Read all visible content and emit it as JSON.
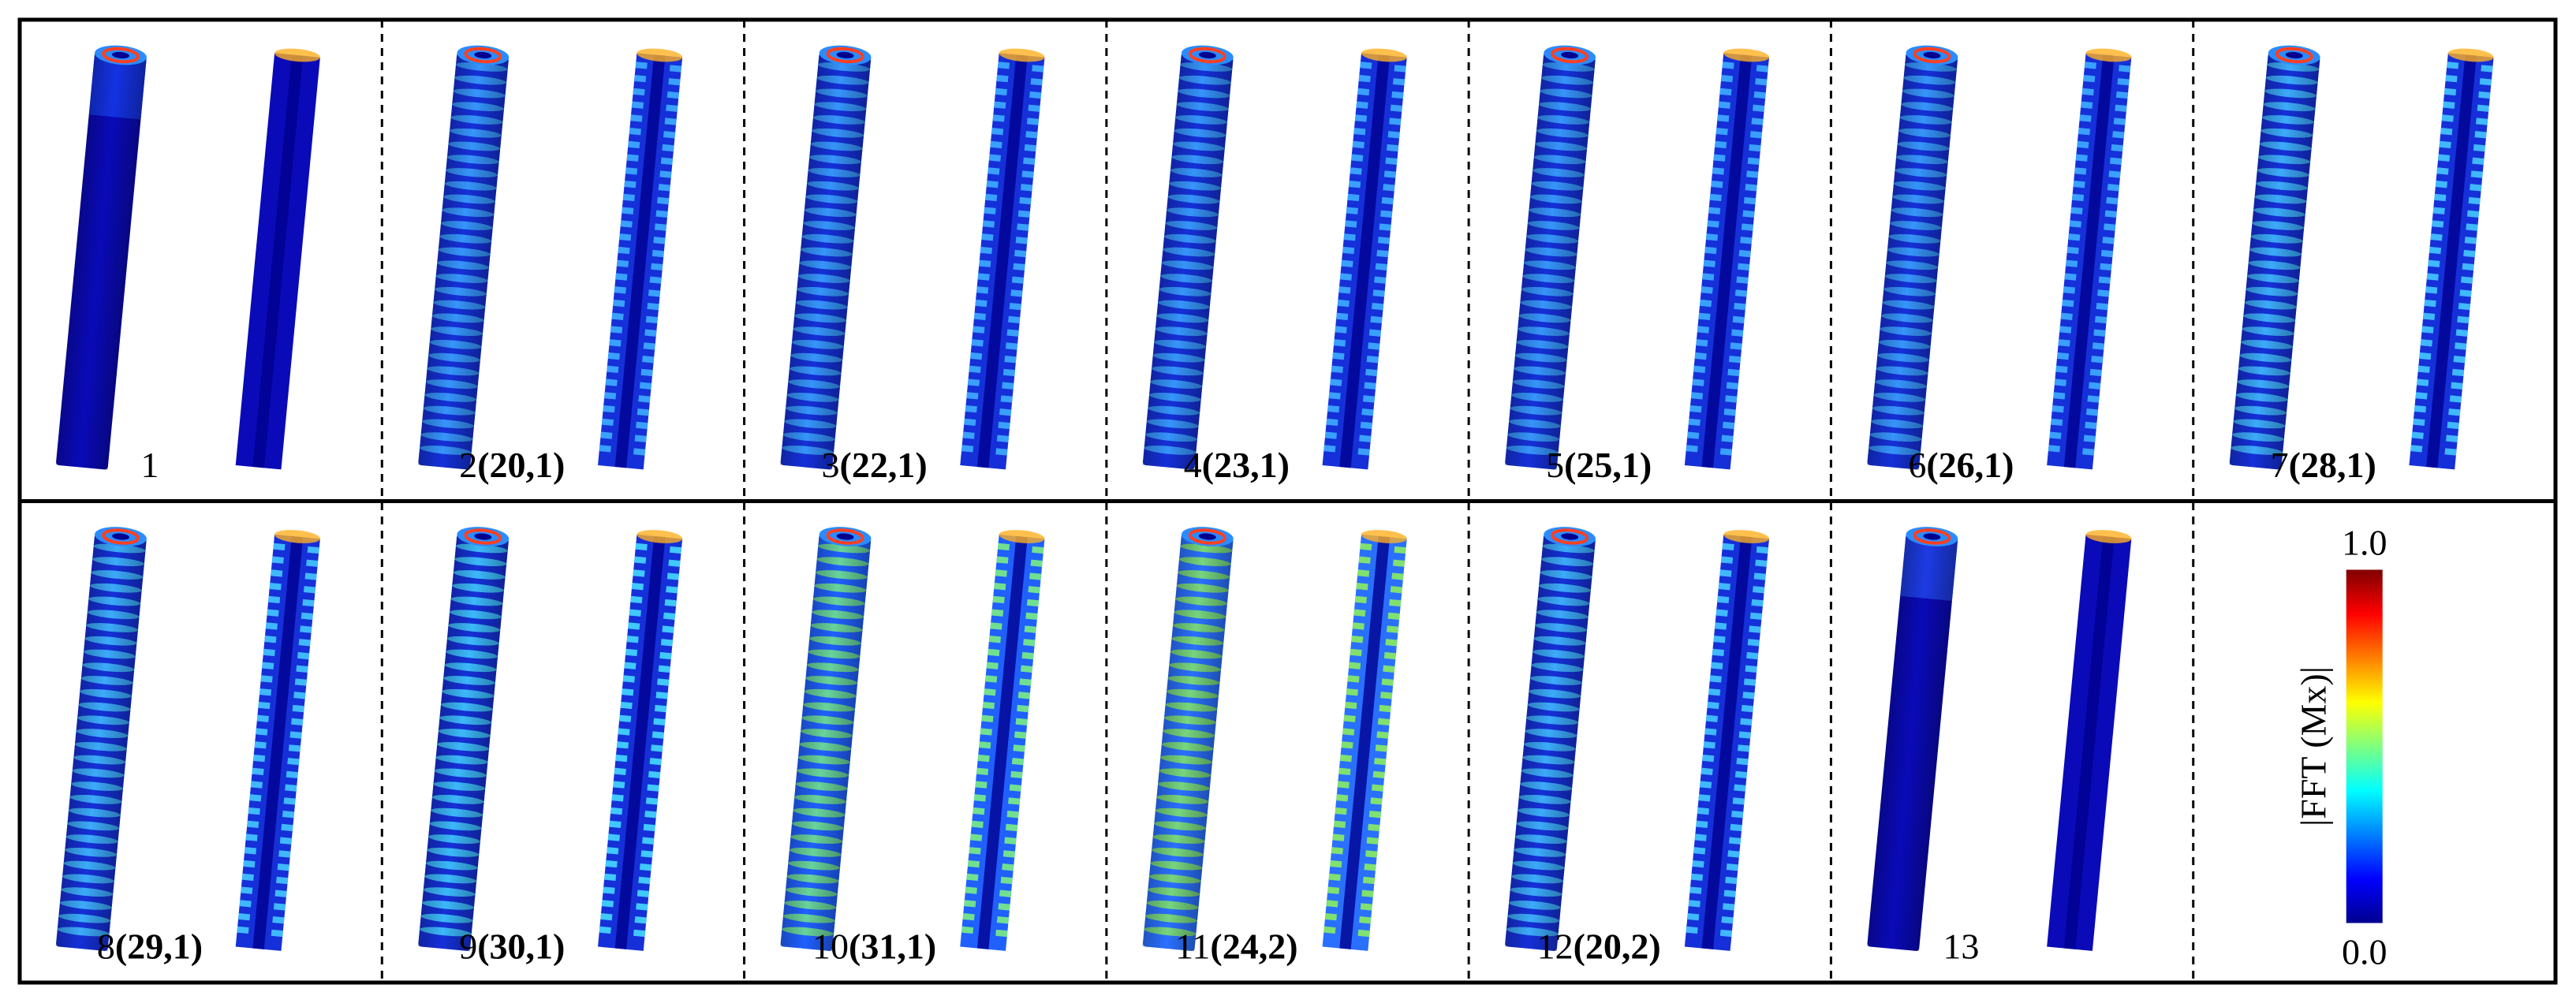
{
  "panels": [
    {
      "number": "1"
    },
    {
      "number": "2",
      "mode": "(20,1)"
    },
    {
      "number": "3",
      "mode": "(22,1)"
    },
    {
      "number": "4",
      "mode": "(23,1)"
    },
    {
      "number": "5",
      "mode": "(25,1)"
    },
    {
      "number": "6",
      "mode": "(26,1)"
    },
    {
      "number": "7",
      "mode": "(28,1)"
    },
    {
      "number": "8",
      "mode": "(29,1)"
    },
    {
      "number": "9",
      "mode": "(30,1)"
    },
    {
      "number": "10",
      "mode": "(31,1)"
    },
    {
      "number": "11",
      "mode": "(24,2)"
    },
    {
      "number": "12",
      "mode": "(20,2)"
    },
    {
      "number": "13"
    }
  ],
  "colorbar": {
    "max_label": "1.0",
    "min_label": "0.0",
    "title": "|FFT (Mx)|"
  }
}
